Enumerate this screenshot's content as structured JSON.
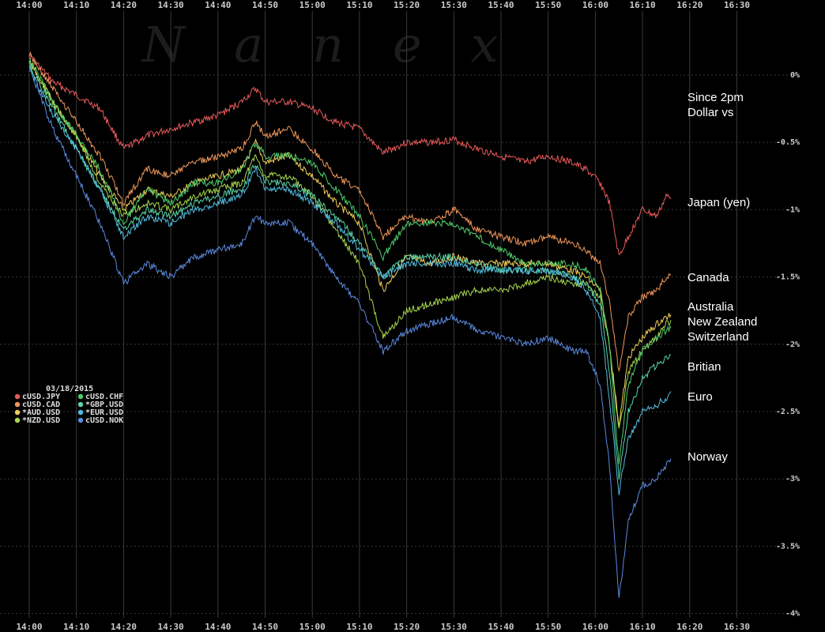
{
  "watermark": "Nanex",
  "chart_data": {
    "type": "line",
    "date": "03/18/2015",
    "x_ticks": [
      "14:00",
      "14:10",
      "14:20",
      "14:30",
      "14:40",
      "14:50",
      "15:00",
      "15:10",
      "15:20",
      "15:30",
      "15:40",
      "15:50",
      "16:00",
      "16:10",
      "16:20",
      "16:30"
    ],
    "y_ticks": [
      "0%",
      "-0.5%",
      "-1%",
      "-1.5%",
      "-2%",
      "-2.5%",
      "-3%",
      "-3.5%",
      "-4%"
    ],
    "ylim": [
      -4,
      0.5
    ],
    "annotations": [
      "Since 2pm",
      "Dollar vs",
      "Japan (yen)",
      "Canada",
      "Australia",
      "New Zealand",
      "Switzerland",
      "Britian",
      "Euro",
      "Norway"
    ],
    "series": [
      {
        "name": "cUSD.JPY",
        "color": "#e85a5a",
        "x": [
          "14:00",
          "14:05",
          "14:10",
          "14:15",
          "14:20",
          "14:25",
          "14:30",
          "14:35",
          "14:40",
          "14:45",
          "14:48",
          "14:50",
          "14:55",
          "15:00",
          "15:05",
          "15:10",
          "15:15",
          "15:20",
          "15:25",
          "15:30",
          "15:35",
          "15:40",
          "15:45",
          "15:50",
          "15:55",
          "15:58",
          "16:01",
          "16:03",
          "16:05",
          "16:07",
          "16:10",
          "16:13",
          "16:15",
          "16:16"
        ],
        "y": [
          0.15,
          -0.05,
          -0.15,
          -0.25,
          -0.55,
          -0.45,
          -0.4,
          -0.35,
          -0.3,
          -0.2,
          -0.1,
          -0.2,
          -0.2,
          -0.25,
          -0.35,
          -0.4,
          -0.58,
          -0.5,
          -0.5,
          -0.48,
          -0.55,
          -0.6,
          -0.65,
          -0.6,
          -0.65,
          -0.7,
          -0.8,
          -0.95,
          -1.35,
          -1.2,
          -1.0,
          -1.05,
          -0.9,
          -0.92
        ]
      },
      {
        "name": "cUSD.CAD",
        "color": "#f0975a",
        "x": [
          "14:00",
          "14:05",
          "14:10",
          "14:15",
          "14:20",
          "14:25",
          "14:30",
          "14:35",
          "14:40",
          "14:45",
          "14:48",
          "14:50",
          "14:55",
          "15:00",
          "15:05",
          "15:10",
          "15:15",
          "15:20",
          "15:25",
          "15:30",
          "15:35",
          "15:40",
          "15:45",
          "15:50",
          "15:55",
          "15:58",
          "16:01",
          "16:03",
          "16:05",
          "16:07",
          "16:10",
          "16:13",
          "16:15",
          "16:16"
        ],
        "y": [
          0.15,
          -0.1,
          -0.35,
          -0.6,
          -0.95,
          -0.7,
          -0.75,
          -0.65,
          -0.6,
          -0.55,
          -0.35,
          -0.45,
          -0.4,
          -0.55,
          -0.75,
          -0.85,
          -1.2,
          -1.05,
          -1.1,
          -1.0,
          -1.15,
          -1.2,
          -1.25,
          -1.2,
          -1.25,
          -1.3,
          -1.4,
          -1.7,
          -2.2,
          -1.8,
          -1.65,
          -1.6,
          -1.5,
          -1.48
        ]
      },
      {
        "name": "*AUD.USD",
        "color": "#f1cf5a",
        "x": [
          "14:00",
          "14:05",
          "14:10",
          "14:15",
          "14:20",
          "14:25",
          "14:30",
          "14:35",
          "14:40",
          "14:45",
          "14:48",
          "14:50",
          "14:55",
          "15:00",
          "15:05",
          "15:10",
          "15:15",
          "15:20",
          "15:25",
          "15:30",
          "15:35",
          "15:40",
          "15:45",
          "15:50",
          "15:55",
          "15:58",
          "16:01",
          "16:03",
          "16:05",
          "16:07",
          "16:10",
          "16:13",
          "16:15",
          "16:16"
        ],
        "y": [
          0.1,
          -0.2,
          -0.45,
          -0.75,
          -1.0,
          -0.85,
          -0.9,
          -0.8,
          -0.75,
          -0.7,
          -0.5,
          -0.65,
          -0.6,
          -0.75,
          -0.95,
          -1.1,
          -1.6,
          -1.35,
          -1.4,
          -1.35,
          -1.4,
          -1.4,
          -1.4,
          -1.4,
          -1.45,
          -1.5,
          -1.6,
          -2.0,
          -2.6,
          -2.1,
          -1.95,
          -1.85,
          -1.8,
          -1.78
        ]
      },
      {
        "name": "*NZD.USD",
        "color": "#a8d84e",
        "x": [
          "14:00",
          "14:05",
          "14:10",
          "14:15",
          "14:20",
          "14:25",
          "14:30",
          "14:35",
          "14:40",
          "14:45",
          "14:48",
          "14:50",
          "14:55",
          "15:00",
          "15:05",
          "15:10",
          "15:15",
          "15:20",
          "15:25",
          "15:30",
          "15:35",
          "15:40",
          "15:45",
          "15:50",
          "15:55",
          "15:58",
          "16:01",
          "16:03",
          "16:05",
          "16:07",
          "16:10",
          "16:13",
          "16:15",
          "16:16"
        ],
        "y": [
          0.1,
          -0.2,
          -0.45,
          -0.8,
          -1.05,
          -0.95,
          -1.0,
          -0.9,
          -0.85,
          -0.8,
          -0.6,
          -0.75,
          -0.75,
          -0.9,
          -1.15,
          -1.4,
          -1.95,
          -1.75,
          -1.7,
          -1.65,
          -1.6,
          -1.6,
          -1.55,
          -1.5,
          -1.55,
          -1.55,
          -1.65,
          -2.0,
          -2.65,
          -2.2,
          -2.05,
          -1.95,
          -1.85,
          -1.82
        ]
      },
      {
        "name": "cUSD.CHF",
        "color": "#4ecc6b",
        "x": [
          "14:00",
          "14:05",
          "14:10",
          "14:15",
          "14:20",
          "14:25",
          "14:30",
          "14:35",
          "14:40",
          "14:45",
          "14:48",
          "14:50",
          "14:55",
          "15:00",
          "15:05",
          "15:10",
          "15:15",
          "15:20",
          "15:25",
          "15:30",
          "15:35",
          "15:40",
          "15:45",
          "15:50",
          "15:55",
          "15:58",
          "16:01",
          "16:03",
          "16:05",
          "16:07",
          "16:10",
          "16:13",
          "16:15",
          "16:16"
        ],
        "y": [
          0.12,
          -0.2,
          -0.45,
          -0.7,
          -1.1,
          -0.85,
          -0.95,
          -0.8,
          -0.8,
          -0.7,
          -0.5,
          -0.6,
          -0.6,
          -0.65,
          -0.85,
          -1.05,
          -1.35,
          -1.1,
          -1.1,
          -1.1,
          -1.2,
          -1.3,
          -1.4,
          -1.4,
          -1.4,
          -1.45,
          -1.6,
          -2.0,
          -2.9,
          -2.3,
          -2.05,
          -1.95,
          -1.9,
          -1.88
        ]
      },
      {
        "name": "*GBP.USD",
        "color": "#5ad4a8",
        "x": [
          "14:00",
          "14:05",
          "14:10",
          "14:15",
          "14:20",
          "14:25",
          "14:30",
          "14:35",
          "14:40",
          "14:45",
          "14:48",
          "14:50",
          "14:55",
          "15:00",
          "15:05",
          "15:10",
          "15:15",
          "15:20",
          "15:25",
          "15:30",
          "15:35",
          "15:40",
          "15:45",
          "15:50",
          "15:55",
          "15:58",
          "16:01",
          "16:03",
          "16:05",
          "16:07",
          "16:10",
          "16:13",
          "16:15",
          "16:16"
        ],
        "y": [
          0.08,
          -0.25,
          -0.55,
          -0.85,
          -1.15,
          -1.0,
          -1.05,
          -0.95,
          -0.9,
          -0.85,
          -0.65,
          -0.8,
          -0.8,
          -0.9,
          -1.05,
          -1.25,
          -1.5,
          -1.35,
          -1.35,
          -1.35,
          -1.4,
          -1.45,
          -1.45,
          -1.45,
          -1.5,
          -1.55,
          -1.7,
          -2.2,
          -3.0,
          -2.5,
          -2.25,
          -2.15,
          -2.1,
          -2.08
        ]
      },
      {
        "name": "*EUR.USD",
        "color": "#52bde0",
        "x": [
          "14:00",
          "14:05",
          "14:10",
          "14:15",
          "14:20",
          "14:25",
          "14:30",
          "14:35",
          "14:40",
          "14:45",
          "14:48",
          "14:50",
          "14:55",
          "15:00",
          "15:05",
          "15:10",
          "15:15",
          "15:20",
          "15:25",
          "15:30",
          "15:35",
          "15:40",
          "15:45",
          "15:50",
          "15:55",
          "15:58",
          "16:01",
          "16:03",
          "16:05",
          "16:07",
          "16:10",
          "16:13",
          "16:15",
          "16:16"
        ],
        "y": [
          0.05,
          -0.3,
          -0.55,
          -0.85,
          -1.2,
          -1.05,
          -1.1,
          -1.0,
          -0.95,
          -0.9,
          -0.7,
          -0.85,
          -0.85,
          -0.95,
          -1.1,
          -1.3,
          -1.5,
          -1.4,
          -1.4,
          -1.4,
          -1.45,
          -1.45,
          -1.45,
          -1.45,
          -1.5,
          -1.6,
          -1.8,
          -2.4,
          -3.1,
          -2.7,
          -2.5,
          -2.45,
          -2.4,
          -2.35
        ]
      },
      {
        "name": "cUSD.NOK",
        "color": "#5b8ae0",
        "x": [
          "14:00",
          "14:05",
          "14:10",
          "14:15",
          "14:20",
          "14:25",
          "14:30",
          "14:35",
          "14:40",
          "14:45",
          "14:48",
          "14:50",
          "14:55",
          "15:00",
          "15:05",
          "15:10",
          "15:15",
          "15:20",
          "15:25",
          "15:30",
          "15:35",
          "15:40",
          "15:45",
          "15:50",
          "15:55",
          "15:58",
          "16:01",
          "16:03",
          "16:05",
          "16:07",
          "16:10",
          "16:13",
          "16:15",
          "16:16"
        ],
        "y": [
          0.05,
          -0.4,
          -0.75,
          -1.1,
          -1.55,
          -1.4,
          -1.5,
          -1.35,
          -1.3,
          -1.25,
          -1.05,
          -1.1,
          -1.1,
          -1.25,
          -1.5,
          -1.7,
          -2.05,
          -1.9,
          -1.85,
          -1.8,
          -1.9,
          -1.95,
          -2.0,
          -1.95,
          -2.05,
          -2.05,
          -2.3,
          -2.9,
          -3.9,
          -3.3,
          -3.05,
          -3.0,
          -2.9,
          -2.85
        ]
      }
    ]
  }
}
